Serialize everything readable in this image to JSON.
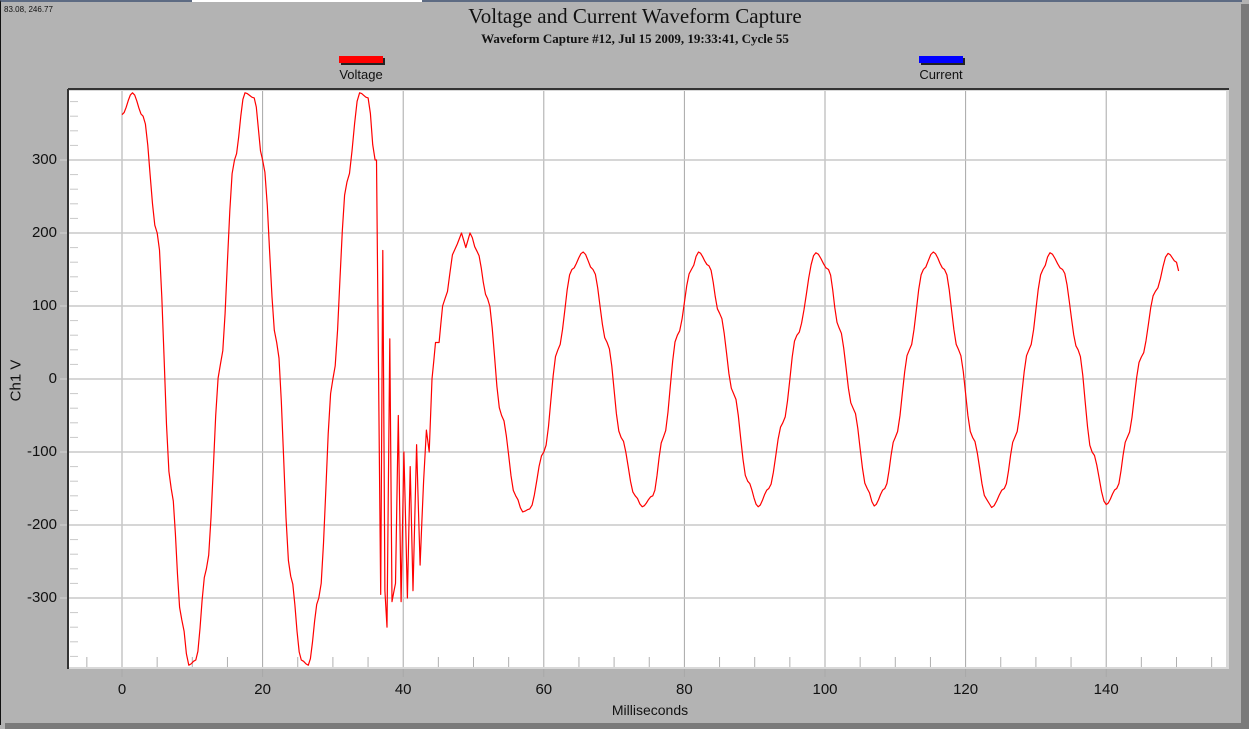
{
  "window": {
    "cursor_readout": "83.08, 246.77"
  },
  "chart_data": {
    "type": "line",
    "title": "Voltage and Current Waveform Capture",
    "subtitle": "Waveform Capture #12, Jul 15 2009, 19:33:41,  Cycle 55",
    "xlabel": "Milliseconds",
    "ylabel": "Ch1 V",
    "xlim": [
      -7.8,
      157.5
    ],
    "ylim": [
      -395,
      395
    ],
    "x_ticks": [
      0,
      20,
      40,
      60,
      80,
      100,
      120,
      140
    ],
    "y_ticks": [
      300,
      200,
      100,
      0,
      -100,
      -200,
      -300
    ],
    "grid": true,
    "legend_position": "top",
    "legend": [
      {
        "name": "Voltage",
        "color": "#ff0000"
      },
      {
        "name": "Current",
        "color": "#0000ff"
      }
    ],
    "series": [
      {
        "name": "Voltage",
        "color": "#ff0000",
        "description": "60 Hz voltage, ~390 V peak (clipped at axis) for first ~2 cycles, transient oscillation at ~36-44 ms, then ~175 V peak sag",
        "points": [
          [
            0,
            362
          ],
          [
            1.5,
            392
          ],
          [
            3,
            360
          ],
          [
            5,
            200
          ],
          [
            7,
            -150
          ],
          [
            8.5,
            -330
          ],
          [
            9.5,
            -392
          ],
          [
            10.5,
            -385
          ],
          [
            12,
            -260
          ],
          [
            14,
            20
          ],
          [
            16,
            300
          ],
          [
            17.5,
            392
          ],
          [
            18.8,
            385
          ],
          [
            20,
            300
          ],
          [
            22,
            50
          ],
          [
            24,
            -270
          ],
          [
            25.5,
            -385
          ],
          [
            26.5,
            -392
          ],
          [
            28,
            -300
          ],
          [
            30,
            0
          ],
          [
            32,
            270
          ],
          [
            33.8,
            392
          ],
          [
            35,
            385
          ],
          [
            36,
            300
          ],
          [
            36.2,
            300
          ],
          [
            36.6,
            -100
          ],
          [
            36.8,
            -295
          ],
          [
            37.1,
            176
          ],
          [
            37.4,
            -290
          ],
          [
            37.7,
            -340
          ],
          [
            38.1,
            55
          ],
          [
            38.4,
            -305
          ],
          [
            38.9,
            -280
          ],
          [
            39.3,
            -50
          ],
          [
            39.7,
            -305
          ],
          [
            40.1,
            -100
          ],
          [
            40.6,
            -300
          ],
          [
            41,
            -120
          ],
          [
            41.4,
            -290
          ],
          [
            41.9,
            -90
          ],
          [
            42.4,
            -255
          ],
          [
            42.9,
            -140
          ],
          [
            43.3,
            -70
          ],
          [
            43.7,
            -100
          ],
          [
            44.1,
            0
          ],
          [
            44.6,
            50
          ],
          [
            45.1,
            50
          ],
          [
            45.6,
            100
          ],
          [
            46.3,
            120
          ],
          [
            47,
            170
          ],
          [
            47.7,
            185
          ],
          [
            48.3,
            200
          ],
          [
            48.9,
            180
          ],
          [
            49.5,
            200
          ],
          [
            50.5,
            175
          ],
          [
            52,
            110
          ],
          [
            54,
            -50
          ],
          [
            56,
            -160
          ],
          [
            57,
            -182
          ],
          [
            58,
            -178
          ],
          [
            60,
            -100
          ],
          [
            62,
            40
          ],
          [
            64,
            150
          ],
          [
            65.6,
            174
          ],
          [
            67,
            150
          ],
          [
            69,
            50
          ],
          [
            71,
            -80
          ],
          [
            73,
            -160
          ],
          [
            74,
            -175
          ],
          [
            75.5,
            -160
          ],
          [
            77,
            -80
          ],
          [
            79,
            60
          ],
          [
            81,
            150
          ],
          [
            82,
            174
          ],
          [
            83.5,
            155
          ],
          [
            85,
            90
          ],
          [
            87,
            -20
          ],
          [
            89,
            -140
          ],
          [
            90.5,
            -175
          ],
          [
            92,
            -150
          ],
          [
            94,
            -60
          ],
          [
            96,
            60
          ],
          [
            98.7,
            173
          ],
          [
            100.5,
            150
          ],
          [
            102,
            70
          ],
          [
            104,
            -40
          ],
          [
            106,
            -150
          ],
          [
            107,
            -174
          ],
          [
            108.5,
            -150
          ],
          [
            110,
            -80
          ],
          [
            112,
            40
          ],
          [
            114,
            150
          ],
          [
            115.4,
            174
          ],
          [
            117,
            150
          ],
          [
            119,
            40
          ],
          [
            121,
            -80
          ],
          [
            123,
            -165
          ],
          [
            123.7,
            -176
          ],
          [
            125.5,
            -150
          ],
          [
            127,
            -80
          ],
          [
            129,
            40
          ],
          [
            131,
            150
          ],
          [
            132,
            173
          ],
          [
            133.8,
            150
          ],
          [
            136,
            40
          ],
          [
            138,
            -100
          ],
          [
            140,
            -172
          ],
          [
            141.5,
            -150
          ],
          [
            143,
            -80
          ],
          [
            145,
            30
          ],
          [
            147,
            120
          ],
          [
            148.8,
            172
          ],
          [
            150,
            160
          ],
          [
            150.3,
            148
          ]
        ]
      },
      {
        "name": "Current",
        "color": "#0000ff",
        "points": []
      }
    ]
  }
}
